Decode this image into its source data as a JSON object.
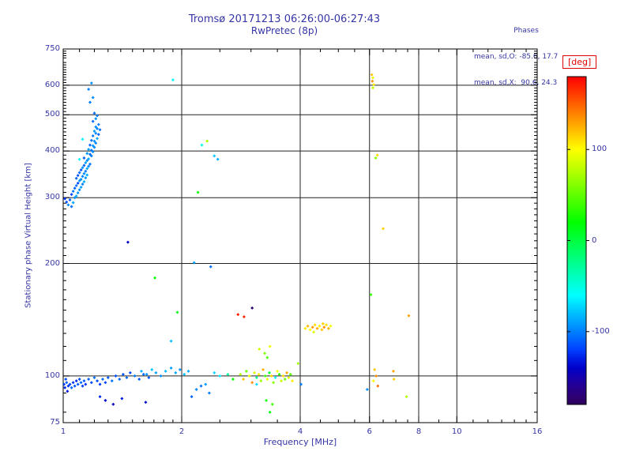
{
  "title": {
    "line1": "Tromsø 20171213 06:26:00-06:27:43",
    "line2": "RwPretec (8p)"
  },
  "stats": {
    "header": "Phases",
    "line1": "mean, sd,O: -85.6, 17.7",
    "line2": "mean, sd,X:  90.6, 24.3"
  },
  "colors": {
    "text": "#3535a5",
    "frame": "#000000",
    "grid": "#222222",
    "deg_label": "#e00000"
  },
  "chart_data": {
    "type": "scatter",
    "title": "Tromsø 20171213 06:26:00-06:27:43 / RwPretec (8p)",
    "xlabel": "Frequency [MHz]",
    "ylabel": "Stationary phase Virtual Height [km]",
    "xscale": "log",
    "yscale": "log",
    "xlim": [
      1,
      16
    ],
    "ylim": [
      75,
      750
    ],
    "xticks": [
      1,
      2,
      4,
      6,
      8,
      10,
      16
    ],
    "yticks": [
      75,
      100,
      200,
      300,
      400,
      500,
      600,
      750
    ],
    "grid": true,
    "marker": "diamond",
    "colorbar": {
      "label": "[deg]",
      "min": -180,
      "max": 180,
      "ticks": [
        100,
        0,
        -100
      ],
      "orientation": "vertical",
      "position": "right"
    },
    "points_format": "[frequency_MHz, virtual_height_km, phase_deg]",
    "points": [
      [
        1.03,
        287,
        -95
      ],
      [
        1.05,
        284,
        -105
      ],
      [
        1.06,
        291,
        -88
      ],
      [
        1.04,
        296,
        -112
      ],
      [
        1.02,
        292,
        -115
      ],
      [
        1.01,
        298,
        -122
      ],
      [
        1.07,
        300,
        -97
      ],
      [
        1.05,
        306,
        -120
      ],
      [
        1.08,
        303,
        -85
      ],
      [
        1.06,
        312,
        -102
      ],
      [
        1.09,
        309,
        -93
      ],
      [
        1.07,
        318,
        -110
      ],
      [
        1.1,
        315,
        -96
      ],
      [
        1.08,
        323,
        -104
      ],
      [
        1.11,
        320,
        -89
      ],
      [
        1.09,
        328,
        -117
      ],
      [
        1.12,
        326,
        -99
      ],
      [
        1.1,
        333,
        -91
      ],
      [
        1.08,
        338,
        -108
      ],
      [
        1.11,
        336,
        -95
      ],
      [
        1.13,
        331,
        -86
      ],
      [
        1.09,
        344,
        -113
      ],
      [
        1.12,
        342,
        -100
      ],
      [
        1.14,
        339,
        -92
      ],
      [
        1.1,
        350,
        -107
      ],
      [
        1.13,
        348,
        -97
      ],
      [
        1.15,
        345,
        -84
      ],
      [
        1.11,
        356,
        -115
      ],
      [
        1.14,
        353,
        -101
      ],
      [
        1.12,
        361,
        -94
      ],
      [
        1.15,
        359,
        -88
      ],
      [
        1.13,
        366,
        -109
      ],
      [
        1.16,
        364,
        -98
      ],
      [
        1.14,
        372,
        -90
      ],
      [
        1.17,
        369,
        -103
      ],
      [
        1.15,
        377,
        -96
      ],
      [
        1.13,
        383,
        -111
      ],
      [
        1.16,
        381,
        -87
      ],
      [
        1.1,
        380,
        -60
      ],
      [
        1.18,
        388,
        -100
      ],
      [
        1.15,
        394,
        -93
      ],
      [
        1.17,
        392,
        -106
      ],
      [
        1.19,
        398,
        -95
      ],
      [
        1.16,
        404,
        -89
      ],
      [
        1.18,
        402,
        -102
      ],
      [
        1.2,
        409,
        -97
      ],
      [
        1.17,
        415,
        -110
      ],
      [
        1.19,
        413,
        -92
      ],
      [
        1.21,
        420,
        -99
      ],
      [
        1.18,
        427,
        -104
      ],
      [
        1.12,
        430,
        -64
      ],
      [
        1.2,
        425,
        -94
      ],
      [
        1.22,
        432,
        -88
      ],
      [
        1.19,
        439,
        -101
      ],
      [
        1.21,
        446,
        -96
      ],
      [
        1.23,
        443,
        -107
      ],
      [
        1.2,
        452,
        -91
      ],
      [
        1.22,
        459,
        -98
      ],
      [
        1.24,
        456,
        -103
      ],
      [
        1.21,
        464,
        -95
      ],
      [
        1.23,
        471,
        -100
      ],
      [
        1.19,
        480,
        -108
      ],
      [
        1.21,
        488,
        -94
      ],
      [
        1.22,
        497,
        -99
      ],
      [
        1.2,
        505,
        -105
      ],
      [
        1.17,
        540,
        -102
      ],
      [
        1.19,
        556,
        -96
      ],
      [
        1.16,
        585,
        -99
      ],
      [
        1.18,
        608,
        -93
      ],
      [
        1.005,
        95,
        -120
      ],
      [
        1.01,
        93,
        -128
      ],
      [
        1.02,
        96,
        -112
      ],
      [
        1.03,
        94,
        -124
      ],
      [
        1.015,
        98,
        -116
      ],
      [
        1.025,
        91,
        -132
      ],
      [
        1.04,
        95,
        -119
      ],
      [
        1.05,
        93,
        -109
      ],
      [
        1.06,
        96,
        -122
      ],
      [
        1.07,
        94,
        -114
      ],
      [
        1.08,
        97,
        -126
      ],
      [
        1.09,
        95,
        -111
      ],
      [
        1.1,
        98,
        -118
      ],
      [
        1.11,
        96,
        -107
      ],
      [
        1.12,
        94,
        -121
      ],
      [
        1.13,
        97,
        -113
      ],
      [
        1.14,
        95,
        -125
      ],
      [
        1.16,
        98,
        -110
      ],
      [
        1.18,
        96,
        -117
      ],
      [
        1.2,
        99,
        -105
      ],
      [
        1.22,
        97,
        -115
      ],
      [
        1.24,
        95,
        -122
      ],
      [
        1.26,
        98,
        -108
      ],
      [
        1.28,
        96,
        -119
      ],
      [
        1.3,
        99,
        -112
      ],
      [
        1.33,
        97,
        -104
      ],
      [
        1.36,
        100,
        -116
      ],
      [
        1.39,
        98,
        -109
      ],
      [
        1.42,
        101,
        -113
      ],
      [
        1.45,
        99,
        -106
      ],
      [
        1.48,
        102,
        -118
      ],
      [
        1.52,
        100,
        -102
      ],
      [
        1.56,
        98,
        -111
      ],
      [
        1.6,
        101,
        -107
      ],
      [
        1.65,
        99,
        -114
      ],
      [
        1.28,
        86,
        -138
      ],
      [
        1.34,
        84,
        -144
      ],
      [
        1.41,
        87,
        -131
      ],
      [
        1.24,
        88,
        -127
      ],
      [
        1.62,
        85,
        -135
      ],
      [
        1.58,
        103,
        -85
      ],
      [
        1.63,
        101,
        -92
      ],
      [
        1.68,
        104,
        -78
      ],
      [
        1.72,
        102,
        -88
      ],
      [
        1.77,
        100,
        -95
      ],
      [
        1.82,
        103,
        -82
      ],
      [
        1.88,
        105,
        -90
      ],
      [
        1.93,
        102,
        -86
      ],
      [
        1.98,
        104,
        -93
      ],
      [
        2.03,
        101,
        -80
      ],
      [
        2.08,
        103,
        -87
      ],
      [
        2.18,
        92,
        -98
      ],
      [
        2.24,
        94,
        -104
      ],
      [
        2.3,
        95,
        -91
      ],
      [
        2.35,
        90,
        -99
      ],
      [
        2.12,
        88,
        -110
      ],
      [
        2.42,
        102,
        -72
      ],
      [
        2.5,
        100,
        -65
      ],
      [
        2.62,
        101,
        -30
      ],
      [
        2.7,
        98,
        20
      ],
      [
        2.82,
        101,
        75
      ],
      [
        2.87,
        98,
        118
      ],
      [
        2.92,
        103,
        55
      ],
      [
        2.97,
        100,
        95
      ],
      [
        3.02,
        96,
        135
      ],
      [
        3.06,
        102,
        88
      ],
      [
        3.1,
        99,
        -25
      ],
      [
        3.14,
        101,
        108
      ],
      [
        3.18,
        97,
        68
      ],
      [
        3.22,
        104,
        125
      ],
      [
        3.26,
        100,
        42
      ],
      [
        3.3,
        98,
        92
      ],
      [
        3.34,
        102,
        8
      ],
      [
        3.38,
        100,
        115
      ],
      [
        3.42,
        96,
        62
      ],
      [
        3.46,
        99,
        -55
      ],
      [
        3.5,
        103,
        98
      ],
      [
        3.54,
        101,
        33
      ],
      [
        3.58,
        97,
        82
      ],
      [
        3.62,
        100,
        112
      ],
      [
        3.66,
        98,
        58
      ],
      [
        3.7,
        102,
        128
      ],
      [
        3.74,
        99,
        90
      ],
      [
        3.78,
        101,
        48
      ],
      [
        3.82,
        97,
        105
      ],
      [
        3.28,
        86,
        25
      ],
      [
        3.4,
        84,
        40
      ],
      [
        3.35,
        80,
        15
      ],
      [
        3.1,
        95,
        -70
      ],
      [
        3.95,
        108,
        70
      ],
      [
        3.15,
        118,
        85
      ],
      [
        3.25,
        115,
        60
      ],
      [
        3.35,
        120,
        95
      ],
      [
        3.3,
        112,
        45
      ],
      [
        4.12,
        134,
        105
      ],
      [
        4.18,
        136,
        122
      ],
      [
        4.24,
        133,
        98
      ],
      [
        4.3,
        135,
        132
      ],
      [
        4.36,
        137,
        110
      ],
      [
        4.42,
        134,
        126
      ],
      [
        4.48,
        136,
        102
      ],
      [
        4.54,
        133,
        118
      ],
      [
        4.6,
        135,
        135
      ],
      [
        4.66,
        137,
        108
      ],
      [
        4.72,
        134,
        124
      ],
      [
        4.78,
        136,
        96
      ],
      [
        4.33,
        131,
        88
      ],
      [
        4.57,
        138,
        115
      ],
      [
        6.08,
        640,
        118
      ],
      [
        6.12,
        628,
        95
      ],
      [
        6.1,
        615,
        135
      ],
      [
        6.15,
        602,
        105
      ],
      [
        6.12,
        590,
        80
      ],
      [
        6.28,
        390,
        112
      ],
      [
        6.22,
        383,
        65
      ],
      [
        6.5,
        248,
        115
      ],
      [
        6.05,
        165,
        38
      ],
      [
        6.18,
        104,
        118
      ],
      [
        6.24,
        100,
        135
      ],
      [
        6.14,
        97,
        102
      ],
      [
        6.3,
        94,
        145
      ],
      [
        5.92,
        92,
        -95
      ],
      [
        6.9,
        103,
        128
      ],
      [
        6.92,
        98,
        115
      ],
      [
        7.45,
        88,
        75
      ],
      [
        7.55,
        145,
        130
      ],
      [
        1.9,
        620,
        -62
      ],
      [
        2.2,
        310,
        20
      ],
      [
        2.32,
        425,
        75
      ],
      [
        2.25,
        415,
        -55
      ],
      [
        2.42,
        388,
        -78
      ],
      [
        2.47,
        380,
        -85
      ],
      [
        2.15,
        201,
        -90
      ],
      [
        2.37,
        196,
        -105
      ],
      [
        1.46,
        228,
        -140
      ],
      [
        1.71,
        183,
        22
      ],
      [
        1.95,
        148,
        10
      ],
      [
        1.88,
        124,
        -80
      ],
      [
        2.78,
        146,
        172
      ],
      [
        2.88,
        144,
        168
      ],
      [
        3.02,
        152,
        -170
      ],
      [
        4.02,
        95,
        -98
      ]
    ]
  },
  "colorbar_tick_labels": [
    "100",
    "0",
    "-100"
  ]
}
